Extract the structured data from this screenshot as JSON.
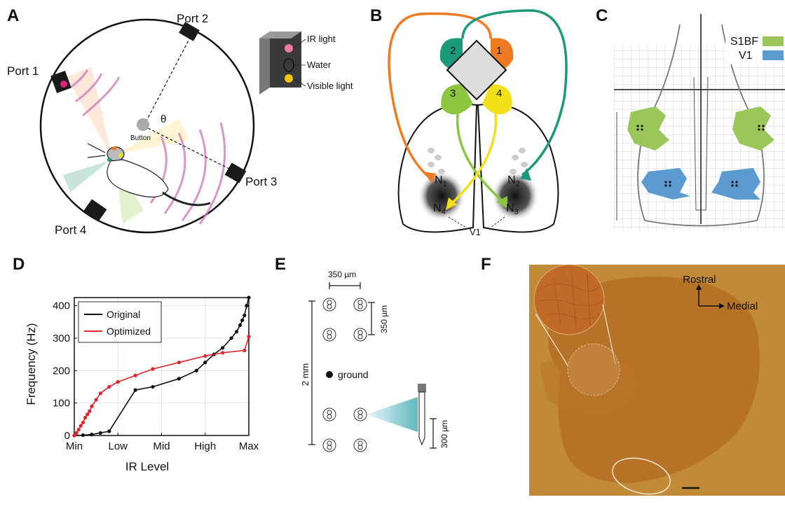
{
  "panels": {
    "A": {
      "label": "A",
      "ports": [
        "Port 1",
        "Port 2",
        "Port 3",
        "Port 4"
      ],
      "button_label": "Button",
      "angle_symbol": "θ",
      "legend": {
        "ir_light": "IR light",
        "water": "Water",
        "visible_light": "Visible light"
      }
    },
    "B": {
      "label": "B",
      "quadrants": [
        "2",
        "1",
        "3",
        "4"
      ],
      "nodes": {
        "n1": "N",
        "n1_sub": "1",
        "n2": "N",
        "n2_sub": "2",
        "n3": "N",
        "n3_sub": "3",
        "n4": "N",
        "n4_sub": "4"
      },
      "region_label": "V1",
      "colors": {
        "q1": "#f07a22",
        "q2": "#1a9a78",
        "q3": "#8cc63f",
        "q4": "#f2e01a"
      }
    },
    "C": {
      "label": "C",
      "legend": [
        {
          "name": "S1BF",
          "color": "#9bc65a"
        },
        {
          "name": "V1",
          "color": "#5b9bd0"
        }
      ]
    },
    "D": {
      "label": "D"
    },
    "E": {
      "label": "E",
      "spacing_top": "350 µm",
      "spacing_right": "350 µm",
      "total_length": "2 mm",
      "ground_label": "ground",
      "probe_length": "300 µm"
    },
    "F": {
      "label": "F",
      "rostral": "Rostral",
      "medial": "Medial"
    }
  },
  "chart_data": {
    "type": "line",
    "xlabel": "IR Level",
    "ylabel": "Frequency (Hz)",
    "xticks": [
      "Min",
      "Low",
      "Mid",
      "High",
      "Max"
    ],
    "yticks": [
      0,
      100,
      200,
      300,
      400
    ],
    "xlim": [
      0,
      4
    ],
    "ylim": [
      0,
      425
    ],
    "grid": true,
    "legend_position": "top-left",
    "series": [
      {
        "name": "Original",
        "color": "#111111",
        "x": [
          0,
          0.2,
          0.4,
          0.6,
          0.8,
          1.4,
          1.8,
          2.4,
          2.8,
          3.0,
          3.2,
          3.4,
          3.6,
          3.72,
          3.8,
          3.85,
          3.9,
          3.95,
          4.0
        ],
        "y": [
          0,
          1,
          3,
          8,
          13,
          140,
          150,
          175,
          200,
          225,
          250,
          270,
          300,
          320,
          340,
          355,
          370,
          400,
          425
        ]
      },
      {
        "name": "Optimized",
        "color": "#e0262a",
        "x": [
          0,
          0.05,
          0.1,
          0.15,
          0.2,
          0.25,
          0.3,
          0.35,
          0.4,
          0.5,
          0.6,
          0.8,
          1.0,
          1.4,
          1.8,
          2.4,
          3.0,
          3.4,
          3.9,
          4.0
        ],
        "y": [
          0,
          8,
          18,
          30,
          40,
          55,
          65,
          75,
          90,
          110,
          130,
          150,
          165,
          185,
          205,
          225,
          245,
          255,
          262,
          305
        ]
      }
    ]
  }
}
